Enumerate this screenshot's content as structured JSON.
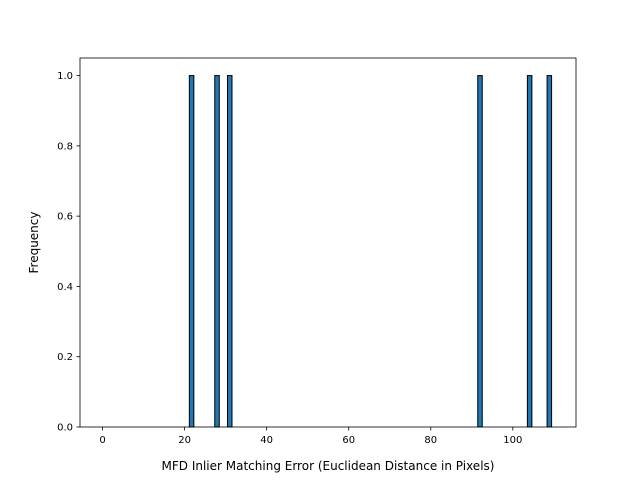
{
  "chart_data": {
    "type": "bar",
    "title": "",
    "xlabel": "MFD Inlier Matching Error (Euclidean Distance in Pixels)",
    "ylabel": "Frequency",
    "xlim": [
      -5.5,
      115.4
    ],
    "ylim": [
      0,
      1.05
    ],
    "xticks": [
      0,
      20,
      40,
      60,
      80,
      100
    ],
    "xtick_labels": [
      "0",
      "20",
      "40",
      "60",
      "80",
      "100"
    ],
    "yticks": [
      0.0,
      0.2,
      0.4,
      0.6,
      0.8,
      1.0
    ],
    "ytick_labels": [
      "0.0",
      "0.2",
      "0.4",
      "0.6",
      "0.8",
      "1.0"
    ],
    "bar_width": 1.1,
    "bars": [
      {
        "x": 21.7,
        "value": 1
      },
      {
        "x": 27.9,
        "value": 1
      },
      {
        "x": 31.0,
        "value": 1
      },
      {
        "x": 92.0,
        "value": 1
      },
      {
        "x": 104.1,
        "value": 1
      },
      {
        "x": 108.9,
        "value": 1
      }
    ],
    "bar_color": "#1f77b4",
    "edge_color": "#000000",
    "grid": false
  }
}
